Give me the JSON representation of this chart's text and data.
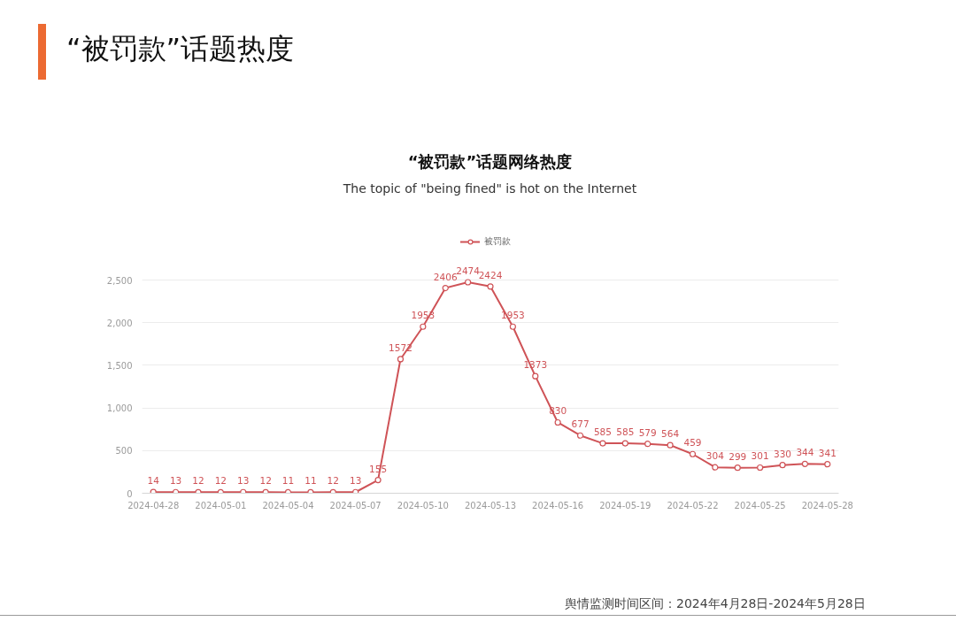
{
  "chart_data": {
    "type": "line",
    "title": "“被罚款”话题网络热度",
    "subtitle": "The topic of \"being fined\" is hot on the Internet",
    "annotations": [
      "“被罚款”话题热度",
      "舆情监测时间区间：2024年4月28日-2024年5月28日"
    ],
    "x": [
      "2024-04-28",
      "2024-04-29",
      "2024-04-30",
      "2024-05-01",
      "2024-05-02",
      "2024-05-03",
      "2024-05-04",
      "2024-05-05",
      "2024-05-06",
      "2024-05-07",
      "2024-05-08",
      "2024-05-09",
      "2024-05-10",
      "2024-05-11",
      "2024-05-12",
      "2024-05-13",
      "2024-05-14",
      "2024-05-15",
      "2024-05-16",
      "2024-05-17",
      "2024-05-18",
      "2024-05-19",
      "2024-05-20",
      "2024-05-21",
      "2024-05-22",
      "2024-05-23",
      "2024-05-24",
      "2024-05-25",
      "2024-05-26",
      "2024-05-27",
      "2024-05-28"
    ],
    "series": [
      {
        "name": "被罚款",
        "color": "#cf5357",
        "values": [
          14,
          13,
          12,
          12,
          13,
          12,
          11,
          11,
          12,
          13,
          155,
          1572,
          1953,
          2406,
          2474,
          2424,
          1953,
          1373,
          830,
          677,
          585,
          585,
          579,
          564,
          459,
          304,
          299,
          301,
          330,
          344,
          341
        ]
      }
    ],
    "xlim": [
      "2024-04-27T12:00",
      "2024-05-28T12:00"
    ],
    "xticks": [
      "2024-04-28",
      "2024-05-01",
      "2024-05-04",
      "2024-05-07",
      "2024-05-10",
      "2024-05-13",
      "2024-05-16",
      "2024-05-19",
      "2024-05-22",
      "2024-05-25",
      "2024-05-28"
    ],
    "ylim": [
      0,
      2500
    ],
    "yticks": [
      0,
      500,
      {
        "value": 1000,
        "label": "1,000"
      },
      {
        "value": 1500,
        "label": "1,500"
      },
      {
        "value": 2000,
        "label": "2,000"
      },
      {
        "value": 2500,
        "label": "2,500"
      }
    ],
    "grid": "y",
    "legend": "top",
    "marker": "circle",
    "line_style": "solid",
    "data_labels": true
  }
}
